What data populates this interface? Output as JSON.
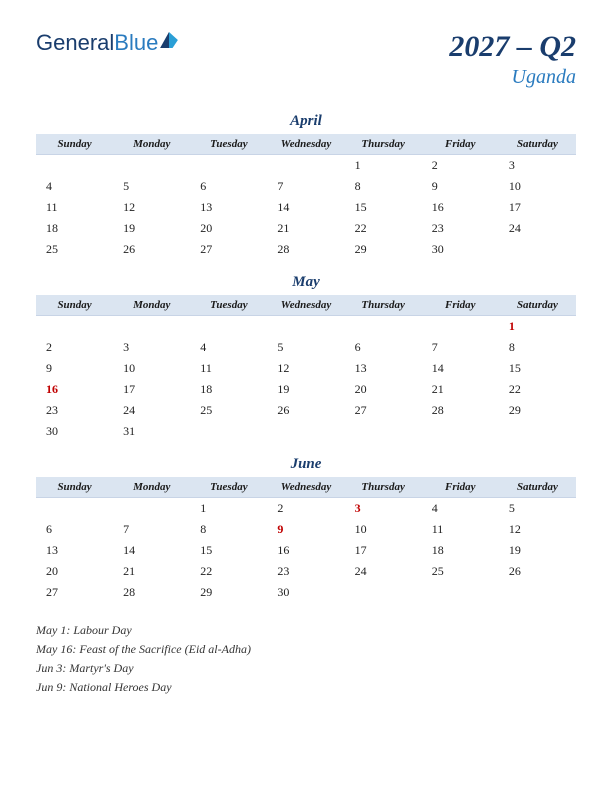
{
  "logo": {
    "part1": "General",
    "part2": "Blue"
  },
  "title": {
    "quarter": "2027 – Q2",
    "country": "Uganda"
  },
  "dayHeaders": [
    "Sunday",
    "Monday",
    "Tuesday",
    "Wednesday",
    "Thursday",
    "Friday",
    "Saturday"
  ],
  "months": [
    {
      "name": "April",
      "weeks": [
        [
          "",
          "",
          "",
          "",
          "1",
          "2",
          "3"
        ],
        [
          "4",
          "5",
          "6",
          "7",
          "8",
          "9",
          "10"
        ],
        [
          "11",
          "12",
          "13",
          "14",
          "15",
          "16",
          "17"
        ],
        [
          "18",
          "19",
          "20",
          "21",
          "22",
          "23",
          "24"
        ],
        [
          "25",
          "26",
          "27",
          "28",
          "29",
          "30",
          ""
        ]
      ],
      "holidays": []
    },
    {
      "name": "May",
      "weeks": [
        [
          "",
          "",
          "",
          "",
          "",
          "",
          "1"
        ],
        [
          "2",
          "3",
          "4",
          "5",
          "6",
          "7",
          "8"
        ],
        [
          "9",
          "10",
          "11",
          "12",
          "13",
          "14",
          "15"
        ],
        [
          "16",
          "17",
          "18",
          "19",
          "20",
          "21",
          "22"
        ],
        [
          "23",
          "24",
          "25",
          "26",
          "27",
          "28",
          "29"
        ],
        [
          "30",
          "31",
          "",
          "",
          "",
          "",
          ""
        ]
      ],
      "holidays": [
        "1",
        "16"
      ]
    },
    {
      "name": "June",
      "weeks": [
        [
          "",
          "",
          "1",
          "2",
          "3",
          "4",
          "5"
        ],
        [
          "6",
          "7",
          "8",
          "9",
          "10",
          "11",
          "12"
        ],
        [
          "13",
          "14",
          "15",
          "16",
          "17",
          "18",
          "19"
        ],
        [
          "20",
          "21",
          "22",
          "23",
          "24",
          "25",
          "26"
        ],
        [
          "27",
          "28",
          "29",
          "30",
          "",
          "",
          ""
        ]
      ],
      "holidays": [
        "3",
        "9"
      ]
    }
  ],
  "holidayList": [
    "May 1: Labour Day",
    "May 16: Feast of the Sacrifice (Eid al-Adha)",
    "Jun 3: Martyr's Day",
    "Jun 9: National Heroes Day"
  ],
  "colors": {
    "headerBg": "#dbe5f1",
    "darkBlue": "#1a3d6d",
    "lightBlue": "#2a7bbf",
    "holidayRed": "#c00000"
  }
}
